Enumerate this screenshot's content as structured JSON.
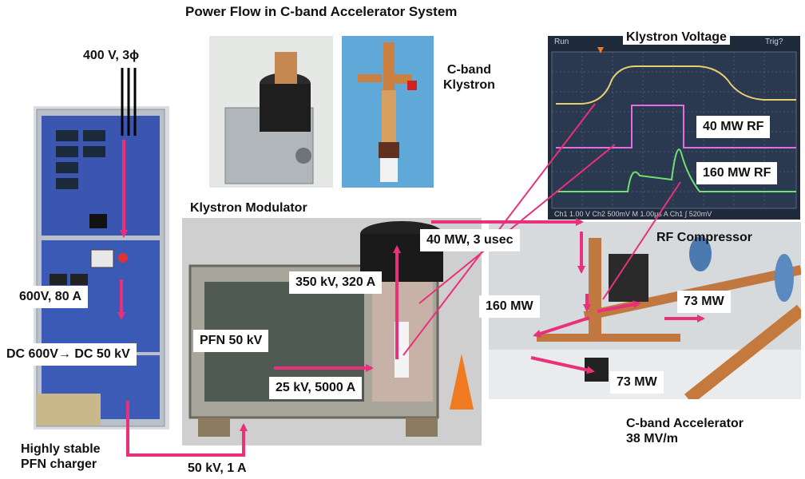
{
  "title": "Power Flow in C-band Accelerator System",
  "labels": {
    "input_power": "400 V, 3ϕ",
    "charger_out": "600V, 80 A",
    "dc_conversion": "DC 600V→ DC 50 kV",
    "charger_name": "Highly stable\nPFN charger",
    "charger_to_modulator": "50 kV, 1 A",
    "klystron_modulator": "Klystron Modulator",
    "pfn": "PFN 50 kV",
    "pulse_transformer": "25 kV, 5000 A",
    "klystron_beam": "350 kV, 320 A",
    "klystron_name": "C-band\nKlystron",
    "klystron_out": "40 MW, 3 usec",
    "compressor": "RF Compressor",
    "compressed": "160 MW",
    "split_upper": "73 MW",
    "split_lower": "73 MW",
    "accelerator": "C-band Accelerator\n38 MV/m"
  },
  "scope": {
    "title": "Klystron Voltage",
    "top_left": "Run",
    "top_right": "Trig?",
    "trace_label_1": "40 MW RF",
    "trace_label_2": "160 MW RF",
    "status": "Ch1  1.00 V  Ch2  500mV  M 1.00μs  A  Ch1 ∫ 520mV"
  },
  "colors": {
    "arrow": "#e8317a",
    "scope_bg": "#1f2a3a",
    "trace_voltage": "#e8d070",
    "trace_rf40": "#e070e0",
    "trace_rf160": "#70e070"
  }
}
